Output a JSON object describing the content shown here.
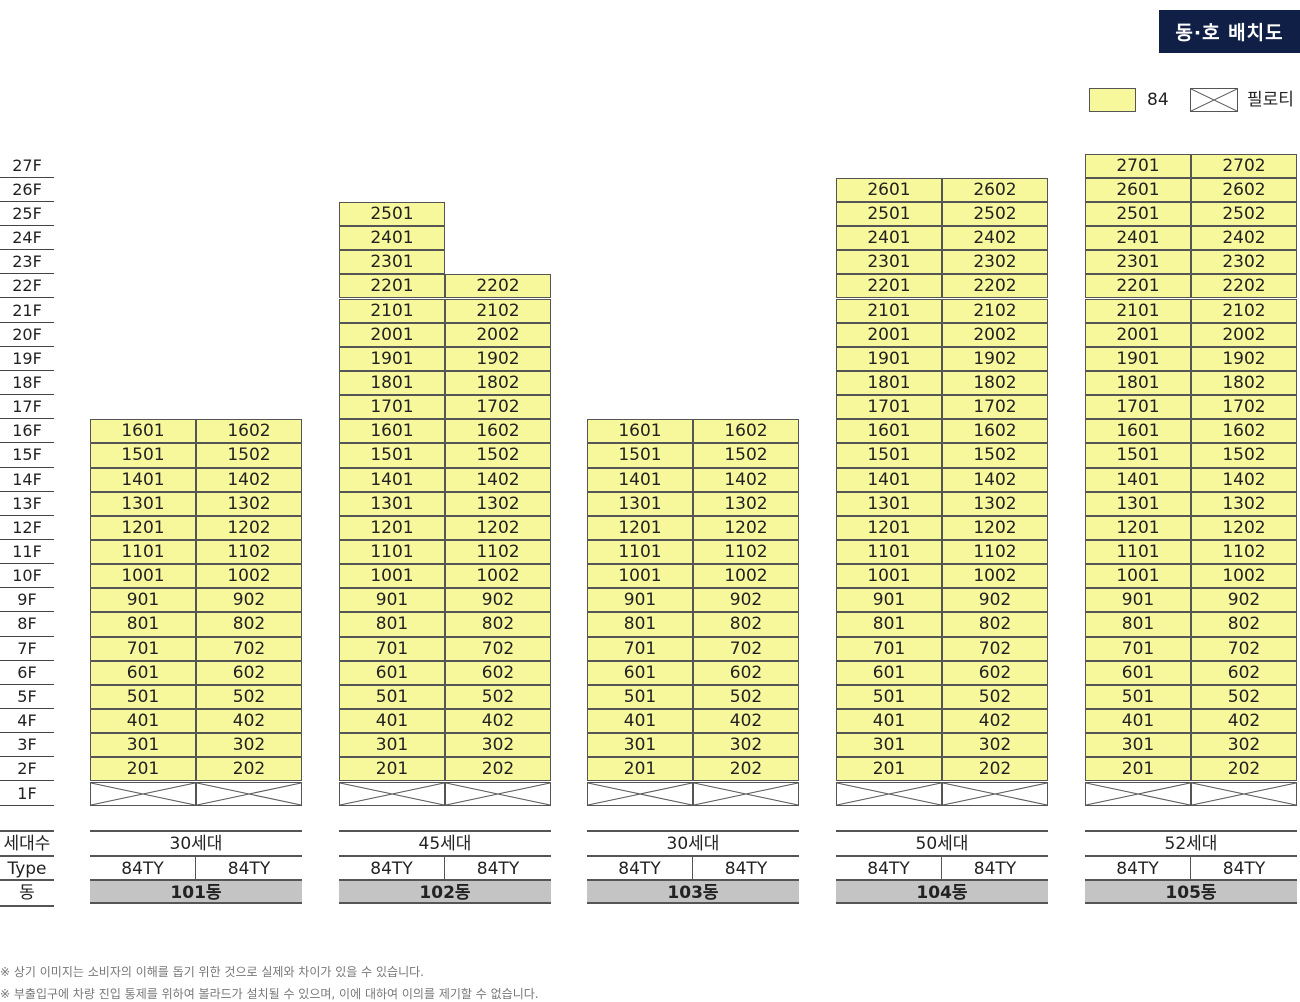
{
  "title": "동·호 배치도",
  "legend": {
    "type_label": "84",
    "piloti_label": "필로티"
  },
  "floors": [
    "1F",
    "2F",
    "3F",
    "4F",
    "5F",
    "6F",
    "7F",
    "8F",
    "9F",
    "10F",
    "11F",
    "12F",
    "13F",
    "14F",
    "15F",
    "16F",
    "17F",
    "18F",
    "19F",
    "20F",
    "21F",
    "22F",
    "23F",
    "24F",
    "25F",
    "26F",
    "27F"
  ],
  "row_labels": {
    "households": "세대수",
    "type": "Type",
    "dong": "동"
  },
  "buildings": [
    {
      "name": "101동",
      "households": "30세대",
      "types": [
        "84TY",
        "84TY"
      ],
      "units": [
        16,
        16
      ]
    },
    {
      "name": "102동",
      "households": "45세대",
      "types": [
        "84TY",
        "84TY"
      ],
      "units": [
        25,
        22
      ]
    },
    {
      "name": "103동",
      "households": "30세대",
      "types": [
        "84TY",
        "84TY"
      ],
      "units": [
        16,
        16
      ]
    },
    {
      "name": "104동",
      "households": "50세대",
      "types": [
        "84TY",
        "84TY"
      ],
      "units": [
        26,
        26
      ]
    },
    {
      "name": "105동",
      "households": "52세대",
      "types": [
        "84TY",
        "84TY"
      ],
      "units": [
        27,
        27
      ]
    }
  ],
  "colors": {
    "unit_fill": "#f7f79b",
    "title_bg": "#0f1f46",
    "dong_bar": "#c4c4c4"
  },
  "notes": [
    "※ 상기 이미지는 소비자의 이해를 돕기 위한 것으로 실제와 차이가 있을 수 있습니다.",
    "※ 부출입구에 차량 진입 통제를 위하여 볼라드가 설치될 수 있으며, 이에 대하여 이의를 제기할 수 없습니다."
  ]
}
